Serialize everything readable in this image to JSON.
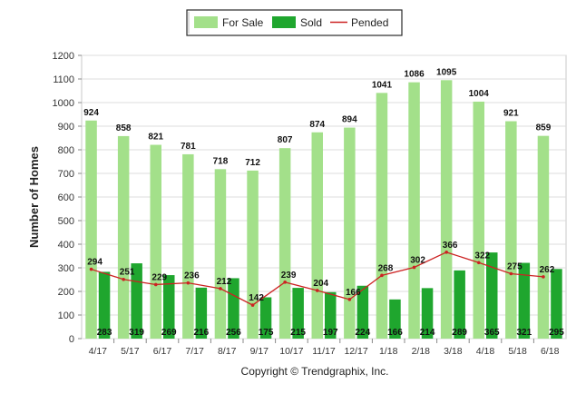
{
  "chart_data": {
    "type": "bar",
    "categories": [
      "4/17",
      "5/17",
      "6/17",
      "7/17",
      "8/17",
      "9/17",
      "10/17",
      "11/17",
      "12/17",
      "1/18",
      "2/18",
      "3/18",
      "4/18",
      "5/18",
      "6/18"
    ],
    "series": [
      {
        "name": "For Sale",
        "type": "bar",
        "color": "#a3e08a",
        "values": [
          924,
          858,
          821,
          781,
          718,
          712,
          807,
          874,
          894,
          1041,
          1086,
          1095,
          1004,
          921,
          859
        ]
      },
      {
        "name": "Sold",
        "type": "bar",
        "color": "#1fa62e",
        "values": [
          283,
          319,
          269,
          216,
          256,
          175,
          215,
          197,
          224,
          166,
          214,
          289,
          365,
          321,
          295
        ]
      },
      {
        "name": "Pended",
        "type": "line",
        "color": "#cc2222",
        "values": [
          294,
          251,
          229,
          236,
          212,
          142,
          239,
          204,
          166,
          268,
          302,
          366,
          322,
          275,
          262
        ]
      }
    ],
    "ylabel": "Number of Homes",
    "xlabel": "",
    "ylim": [
      0,
      1200
    ],
    "yticks": [
      0,
      100,
      200,
      300,
      400,
      500,
      600,
      700,
      800,
      900,
      1000,
      1100,
      1200
    ],
    "grid": true,
    "legend_position": "top-center"
  },
  "footer": "Copyright © Trendgraphix, Inc."
}
